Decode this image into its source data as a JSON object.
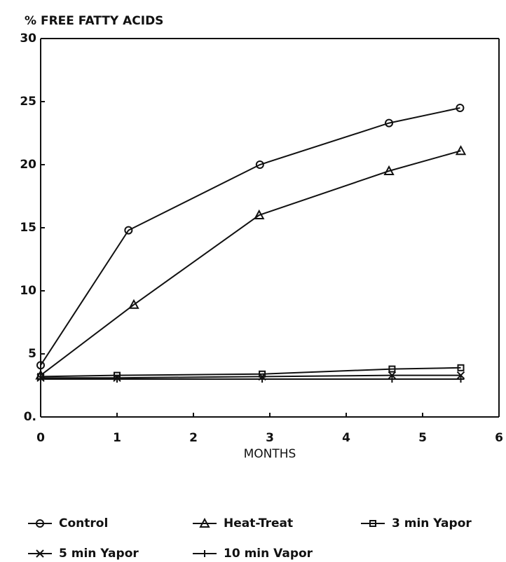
{
  "chart_data": {
    "type": "line",
    "title": "% FREE FATTY ACIDS",
    "x_label": "MONTHS",
    "xlim": [
      0,
      6
    ],
    "xticks": [
      0,
      1,
      2,
      3,
      4,
      5,
      6
    ],
    "ylim": [
      0,
      30
    ],
    "yticks": [
      {
        "value": 0,
        "label": "0."
      },
      5,
      10,
      15,
      20,
      25,
      30
    ],
    "series": [
      {
        "name": "Control",
        "color": "#111111",
        "marker": "circle",
        "x": [
          0,
          1.15,
          2.87,
          4.56,
          5.49
        ],
        "values": [
          4.1,
          14.8,
          20.0,
          23.3,
          24.5
        ]
      },
      {
        "name": "Heat-Treat",
        "color": "#111111",
        "marker": "triangle",
        "x": [
          0,
          1.22,
          2.86,
          4.56,
          5.5
        ],
        "values": [
          3.3,
          8.9,
          16.0,
          19.5,
          21.1
        ]
      },
      {
        "name": "3 min Yapor",
        "color": "#111111",
        "marker": "square",
        "x": [
          0,
          1,
          2.9,
          4.6,
          5.5
        ],
        "values": [
          3.2,
          3.3,
          3.4,
          3.8,
          3.9
        ]
      },
      {
        "name": "5 min Yapor",
        "color": "#111111",
        "marker": "x",
        "x": [
          0,
          1,
          2.9,
          4.6,
          5.5
        ],
        "values": [
          3.1,
          3.1,
          3.2,
          3.3,
          3.3
        ]
      },
      {
        "name": "10 min Vapor",
        "color": "#111111",
        "marker": "plus",
        "x": [
          0,
          1,
          2.9,
          4.6,
          5.5
        ],
        "values": [
          3.0,
          3.0,
          3.0,
          3.0,
          3.0
        ]
      }
    ]
  }
}
